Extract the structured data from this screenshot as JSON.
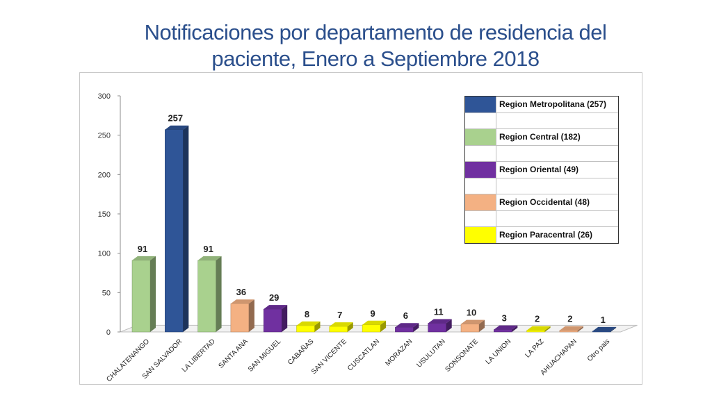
{
  "title": {
    "line1": "Notificaciones por departamento de residencia del",
    "line2": "paciente, Enero a Septiembre 2018"
  },
  "colors": {
    "Metropolitana": "#2f5597",
    "Central": "#a9d18e",
    "Oriental": "#7030a0",
    "Occidental": "#f4b183",
    "Paracentral": "#ffff00"
  },
  "legend": [
    {
      "label": "Region Metropolitana (257)",
      "region": "Metropolitana"
    },
    {
      "label": "",
      "region": ""
    },
    {
      "label": "Region Central (182)",
      "region": "Central"
    },
    {
      "label": "",
      "region": ""
    },
    {
      "label": "Region Oriental (49)",
      "region": "Oriental"
    },
    {
      "label": "",
      "region": ""
    },
    {
      "label": "Region Occidental (48)",
      "region": "Occidental"
    },
    {
      "label": "",
      "region": ""
    },
    {
      "label": "Region Paracentral (26)",
      "region": "Paracentral"
    }
  ],
  "chart_data": {
    "type": "bar",
    "categories": [
      "CHALATENANGO",
      "SAN SALVADOR",
      "LA LIBERTAD",
      "SANTA ANA",
      "SAN MIGUEL",
      "CABAÑAS",
      "SAN VICENTE",
      "CUSCATLAN",
      "MORAZAN",
      "USULUTAN",
      "SONSONATE",
      "LA UNION",
      "LA PAZ",
      "AHUACHAPAN",
      "Otro pais"
    ],
    "values": [
      91,
      257,
      91,
      36,
      29,
      8,
      7,
      9,
      6,
      11,
      10,
      3,
      2,
      2,
      1
    ],
    "regions": [
      "Central",
      "Metropolitana",
      "Central",
      "Occidental",
      "Oriental",
      "Paracentral",
      "Paracentral",
      "Paracentral",
      "Oriental",
      "Oriental",
      "Occidental",
      "Oriental",
      "Paracentral",
      "Occidental",
      "Metropolitana"
    ],
    "data_labels": [
      "91",
      "257",
      "91",
      "36",
      "29",
      "8",
      "7",
      "9",
      "6",
      "11",
      "10",
      "3",
      "2",
      "2",
      "1"
    ],
    "yticks": [
      "0",
      "50",
      "100",
      "150",
      "200",
      "250",
      "300"
    ],
    "ylim": [
      0,
      300
    ],
    "title": "",
    "xlabel": "",
    "ylabel": "",
    "grid": false,
    "legend_position": "top-right"
  }
}
